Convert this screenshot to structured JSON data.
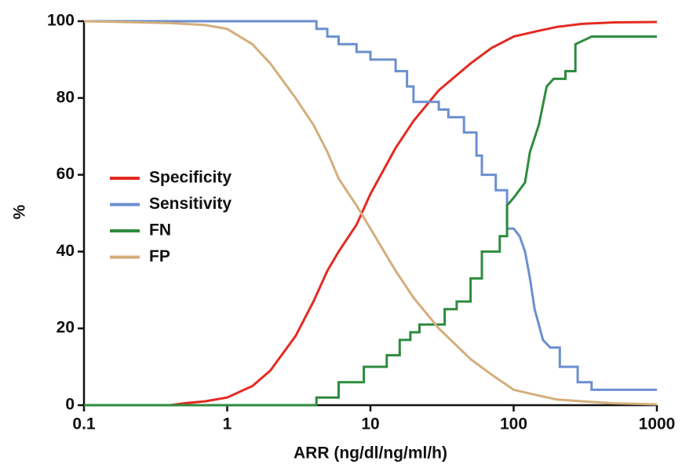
{
  "chart_data": {
    "type": "line",
    "x_label": "ARR (ng/dl/ng/ml/h)",
    "y_label": "%",
    "xlim": [
      0.1,
      1000
    ],
    "xticks": [
      0.1,
      1,
      10,
      100,
      1000
    ],
    "xscale": "log",
    "ylim": [
      0,
      100
    ],
    "yticks": [
      0,
      20,
      40,
      60,
      80,
      100
    ],
    "legend": "left",
    "series": [
      {
        "name": "Specificity",
        "color": "#e32a22",
        "x": [
          0.1,
          0.4,
          0.5,
          0.7,
          1,
          1.5,
          2,
          3,
          4,
          5,
          6,
          8,
          10,
          15,
          20,
          30,
          50,
          70,
          100,
          150,
          200,
          300,
          500,
          1000
        ],
        "values": [
          0,
          0,
          0.5,
          1,
          2,
          5,
          9,
          18,
          27,
          35,
          40,
          47,
          55,
          67,
          74,
          82,
          89,
          93,
          96,
          97.5,
          98.5,
          99.3,
          99.7,
          99.8
        ]
      },
      {
        "name": "Sensitivity",
        "color": "#6b8fd0",
        "x": [
          0.1,
          4.2,
          4.2,
          5,
          5,
          6,
          6,
          8,
          8,
          10,
          10,
          15,
          15,
          18,
          18,
          20,
          20,
          30,
          30,
          35,
          35,
          45,
          45,
          55,
          55,
          60,
          60,
          75,
          75,
          90,
          90,
          100,
          110,
          120,
          130,
          140,
          150,
          160,
          180,
          210,
          210,
          280,
          280,
          350,
          350,
          1000
        ],
        "values": [
          100,
          100,
          98,
          98,
          96,
          96,
          94,
          94,
          92,
          92,
          90,
          90,
          87,
          87,
          83,
          83,
          79,
          79,
          77,
          77,
          75,
          75,
          71,
          71,
          65,
          65,
          60,
          60,
          56,
          56,
          46,
          46,
          44,
          40,
          33,
          25,
          21,
          17,
          15,
          15,
          10,
          10,
          6,
          6,
          4,
          4
        ]
      },
      {
        "name": "FN",
        "color": "#2e8b3e",
        "x": [
          0.1,
          4.2,
          4.2,
          6,
          6,
          9,
          9,
          13,
          13,
          16,
          16,
          19,
          19,
          22,
          22,
          33,
          33,
          40,
          40,
          50,
          50,
          60,
          60,
          80,
          80,
          90,
          90,
          100,
          120,
          130,
          150,
          170,
          190,
          230,
          230,
          270,
          270,
          350,
          1000
        ],
        "values": [
          0,
          0,
          2,
          2,
          6,
          6,
          10,
          10,
          13,
          13,
          17,
          17,
          19,
          19,
          21,
          21,
          25,
          25,
          27,
          27,
          33,
          33,
          40,
          40,
          44,
          44,
          52,
          54,
          58,
          66,
          73,
          83,
          85,
          85,
          87,
          87,
          94,
          96,
          96
        ]
      },
      {
        "name": "FP",
        "color": "#d4ae7c",
        "x": [
          0.1,
          0.4,
          0.7,
          1,
          1.5,
          2,
          3,
          4,
          5,
          6,
          8,
          10,
          15,
          20,
          30,
          50,
          70,
          100,
          150,
          200,
          300,
          500,
          1000
        ],
        "values": [
          100,
          99.5,
          99,
          98,
          94,
          89,
          80,
          73,
          66,
          59,
          52,
          46,
          35,
          28,
          20,
          12,
          8,
          4,
          2.5,
          1.5,
          1,
          0.5,
          0.2
        ]
      }
    ]
  }
}
